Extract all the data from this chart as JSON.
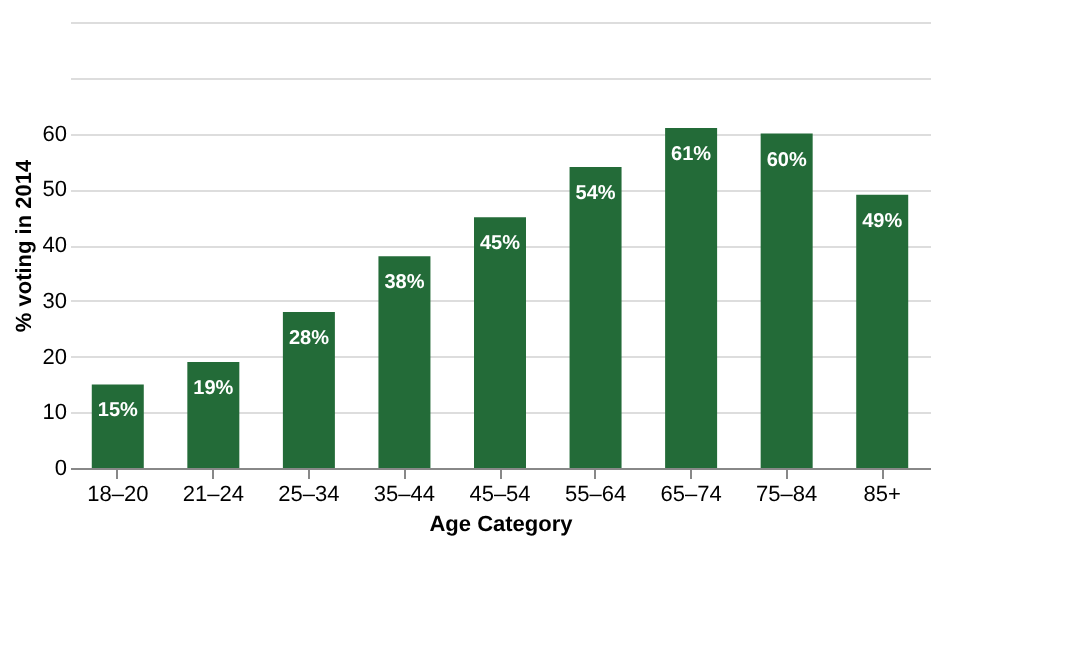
{
  "chart_data": {
    "type": "bar",
    "categories": [
      "18–20",
      "21–24",
      "25–34",
      "35–44",
      "45–54",
      "55–64",
      "65–74",
      "75–84",
      "85+"
    ],
    "values": [
      15,
      19,
      28,
      38,
      45,
      54,
      61,
      60,
      49
    ],
    "color": "#236b38",
    "xlabel": "Age Category",
    "ylabel": "% voting in 2014",
    "ylim": [
      0,
      80
    ],
    "yticks": [
      0,
      10,
      20,
      30,
      40,
      50,
      60,
      {
        "value": 70,
        "label": null
      },
      {
        "value": 80,
        "label": null
      }
    ],
    "value_labels": [
      "15%",
      "19%",
      "28%",
      "38%",
      "45%",
      "54%",
      "61%",
      "60%",
      "49%"
    ],
    "grid": "y"
  }
}
